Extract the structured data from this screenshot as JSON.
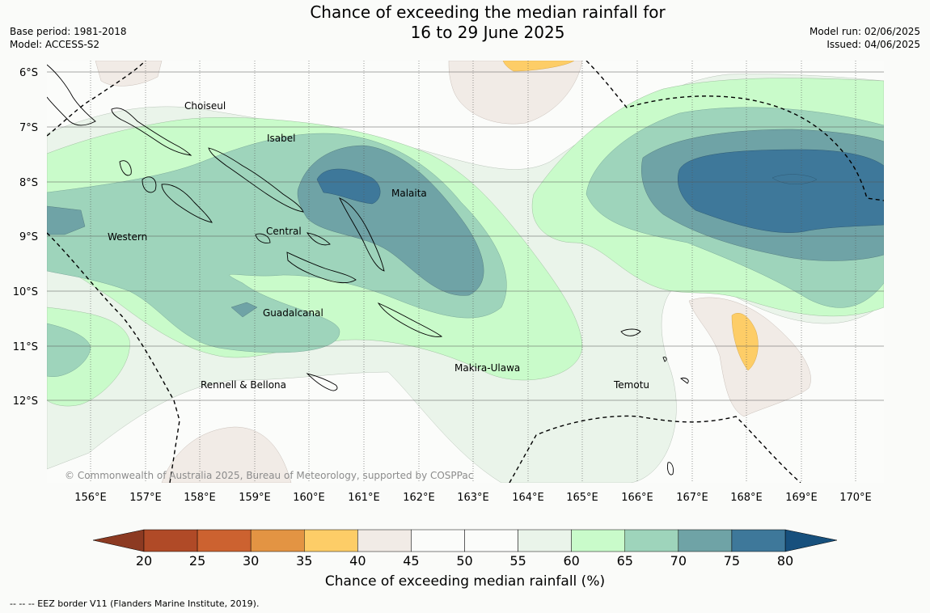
{
  "title": {
    "line1": "Chance of exceeding the median rainfall for",
    "line2": "16 to 29 June 2025"
  },
  "meta": {
    "base_period": "Base period: 1981-2018",
    "model": "Model: ACCESS-S2",
    "model_run": "Model run: 02/06/2025",
    "issued": "Issued: 04/06/2025"
  },
  "map": {
    "lat_labels": [
      "6°S",
      "7°S",
      "8°S",
      "9°S",
      "10°S",
      "11°S",
      "12°S"
    ],
    "lon_labels": [
      "156°E",
      "157°E",
      "158°E",
      "159°E",
      "160°E",
      "161°E",
      "162°E",
      "163°E",
      "164°E",
      "165°E",
      "166°E",
      "167°E",
      "168°E",
      "169°E",
      "170°E"
    ],
    "provinces": [
      "Choiseul",
      "Isabel",
      "Malaita",
      "Western",
      "Central",
      "Guadalcanal",
      "Makira-Ulawa",
      "Temotu",
      "Rennell & Bellona"
    ],
    "copyright": "© Commonwealth of Australia 2025, Bureau of Meteorology, supported by COSPPac"
  },
  "colorbar": {
    "ticks": [
      "20",
      "25",
      "30",
      "35",
      "40",
      "45",
      "50",
      "55",
      "60",
      "65",
      "70",
      "75",
      "80"
    ],
    "colors": [
      "#8c3a22",
      "#b04a27",
      "#cc6230",
      "#e39443",
      "#fdcd67",
      "#f1ebe6",
      "#fbfcfa",
      "#fbfcfa",
      "#eaf4ea",
      "#c9fbca",
      "#9ed4bb",
      "#6fa3a6",
      "#3e789a",
      "#17507d"
    ],
    "title": "Chance of exceeding median rainfall (%)"
  },
  "footer": "--  --  -- EEZ border V11 (Flanders Marine Institute, 2019)."
}
